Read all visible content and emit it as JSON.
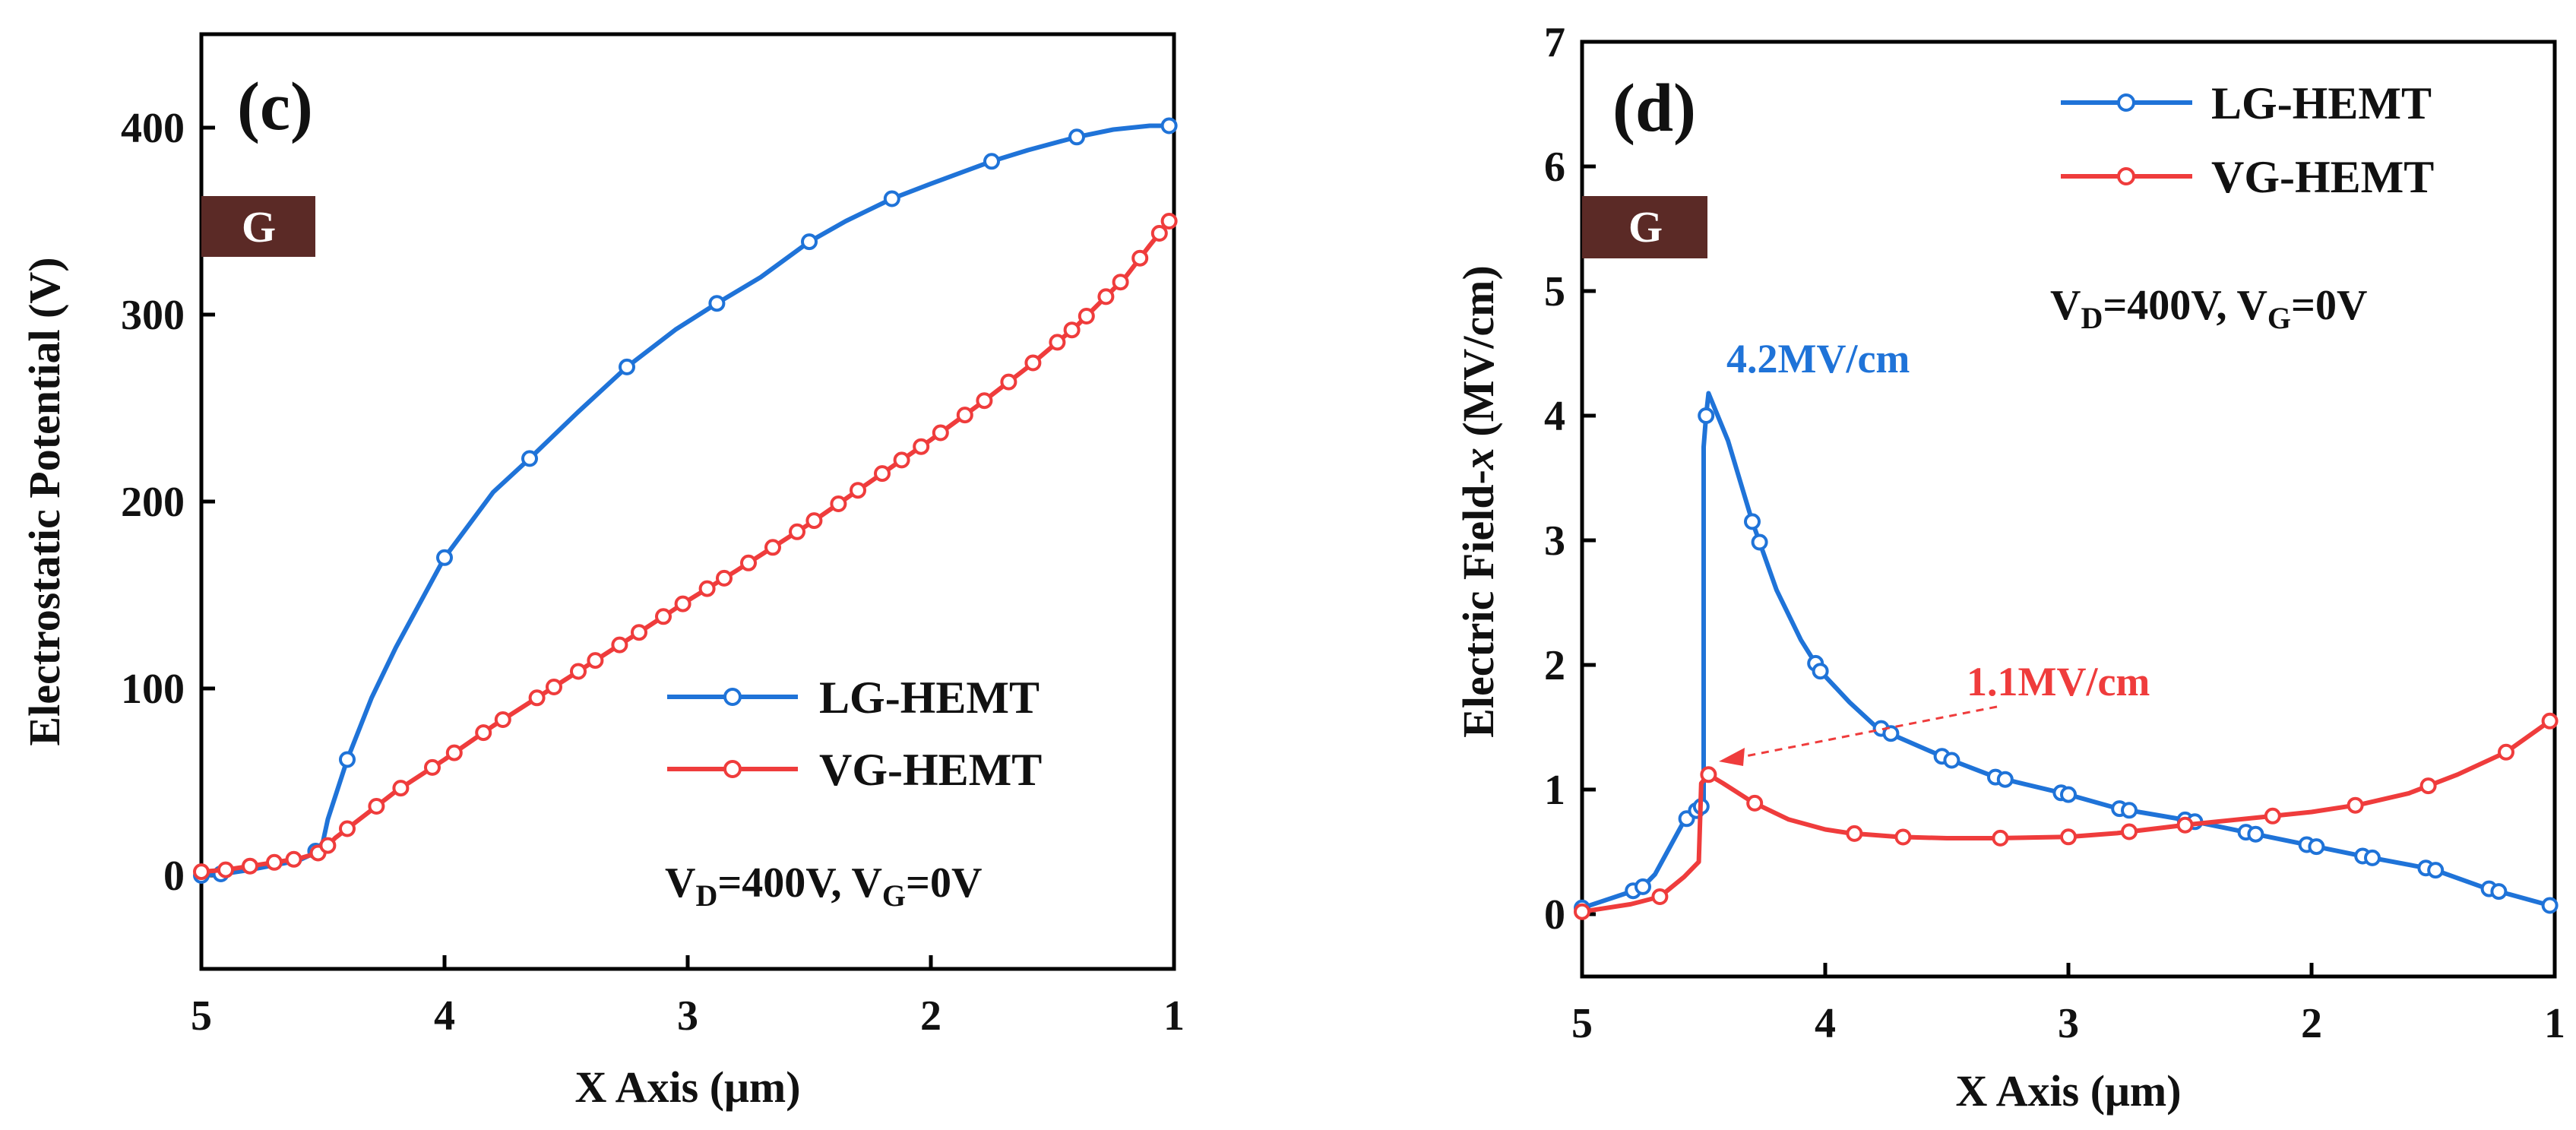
{
  "colors": {
    "lg": "#1f73d8",
    "vg": "#ef3c3c",
    "gate_box": "#5b2a26",
    "axis": "#000000"
  },
  "chart_data": [
    {
      "type": "line",
      "panel_label": "(c)",
      "xlabel": "X Axis (μm)",
      "ylabel": "Electrostatic Potential (V)",
      "xlim": [
        5,
        1
      ],
      "ylim": [
        -50,
        450
      ],
      "x_ticks": [
        5,
        4,
        3,
        2,
        1
      ],
      "y_ticks": [
        0,
        100,
        200,
        300,
        400
      ],
      "gate_label": "G",
      "condition": {
        "v_d": "V",
        "d_sub": "D",
        "mid": "=400V, V",
        "g_sub": "G",
        "end": "=0V"
      },
      "series": [
        {
          "name": "LG-HEMT",
          "x": [
            5.0,
            4.9,
            4.8,
            4.6,
            4.55,
            4.52,
            4.5,
            4.48,
            4.4,
            4.3,
            4.2,
            4.0,
            3.8,
            3.65,
            3.45,
            3.25,
            3.05,
            2.88,
            2.7,
            2.5,
            2.35,
            2.16,
            2.0,
            1.75,
            1.6,
            1.4,
            1.25,
            1.1,
            1.02
          ],
          "y": [
            0,
            1,
            3,
            8,
            11,
            14,
            18,
            30,
            62,
            95,
            122,
            170,
            205,
            223,
            248,
            272,
            292,
            306,
            320,
            339,
            350,
            362,
            370,
            382,
            388,
            395,
            399,
            401,
            401
          ],
          "markers_x": [
            5.0,
            4.92,
            4.53,
            4.4,
            4.0,
            3.65,
            3.25,
            2.88,
            2.5,
            2.16,
            1.75,
            1.4,
            1.02
          ]
        },
        {
          "name": "VG-HEMT",
          "x": [
            5.0,
            4.9,
            4.8,
            4.7,
            4.6,
            4.52,
            4.48,
            4.45,
            4.4,
            4.3,
            4.2,
            4.0,
            3.8,
            3.5,
            3.2,
            3.0,
            2.8,
            2.5,
            2.2,
            2.0,
            1.8,
            1.6,
            1.4,
            1.2,
            1.1,
            1.02
          ],
          "y": [
            2,
            3,
            5,
            7,
            9,
            12,
            16,
            20,
            25,
            35,
            45,
            62,
            80,
            105,
            130,
            147,
            163,
            188,
            215,
            233,
            252,
            272,
            294,
            320,
            337,
            350
          ],
          "markers_x": [
            5.0,
            4.9,
            4.8,
            4.7,
            4.62,
            4.52,
            4.48,
            4.4,
            4.28,
            4.18,
            4.05,
            3.96,
            3.84,
            3.76,
            3.62,
            3.55,
            3.45,
            3.38,
            3.28,
            3.2,
            3.1,
            3.02,
            2.92,
            2.85,
            2.75,
            2.65,
            2.55,
            2.48,
            2.38,
            2.3,
            2.2,
            2.12,
            2.04,
            1.96,
            1.86,
            1.78,
            1.68,
            1.58,
            1.48,
            1.42,
            1.36,
            1.28,
            1.22,
            1.14,
            1.06,
            1.02
          ]
        }
      ]
    },
    {
      "type": "line",
      "panel_label": "(d)",
      "xlabel": "X Axis (μm)",
      "ylabel_main": "Electric Field-",
      "ylabel_italic": "x",
      "ylabel_unit": " (MV/cm)",
      "xlim": [
        5,
        1
      ],
      "ylim": [
        -0.5,
        7
      ],
      "x_ticks": [
        5,
        4,
        3,
        2,
        1
      ],
      "y_ticks": [
        0,
        1,
        2,
        3,
        4,
        5,
        6,
        7
      ],
      "gate_label": "G",
      "condition": {
        "v_d": "V",
        "d_sub": "D",
        "mid": "=400V, V",
        "g_sub": "G",
        "end": "=0V"
      },
      "annotations": {
        "lg_peak": "4.2MV/cm",
        "vg_peak": "1.1MV/cm"
      },
      "series": [
        {
          "name": "LG-HEMT",
          "x": [
            5.0,
            4.8,
            4.75,
            4.7,
            4.58,
            4.5,
            4.5,
            4.49,
            4.48,
            4.4,
            4.3,
            4.2,
            4.1,
            4.02,
            3.9,
            3.8,
            3.7,
            3.5,
            3.3,
            3.0,
            2.8,
            2.5,
            2.25,
            2.0,
            1.8,
            1.5,
            1.3,
            1.02
          ],
          "y": [
            0.05,
            0.18,
            0.22,
            0.32,
            0.75,
            0.88,
            3.75,
            4.0,
            4.18,
            3.8,
            3.15,
            2.6,
            2.2,
            1.95,
            1.7,
            1.52,
            1.42,
            1.25,
            1.1,
            0.96,
            0.85,
            0.75,
            0.65,
            0.55,
            0.47,
            0.36,
            0.22,
            0.07
          ],
          "markers_x": [
            5.0,
            4.79,
            4.75,
            4.57,
            4.53,
            4.51,
            4.49,
            4.3,
            4.27,
            4.04,
            4.02,
            3.77,
            3.73,
            3.52,
            3.48,
            3.3,
            3.26,
            3.03,
            3.0,
            2.79,
            2.75,
            2.52,
            2.48,
            2.27,
            2.23,
            2.02,
            1.98,
            1.79,
            1.75,
            1.53,
            1.49,
            1.27,
            1.23,
            1.02
          ]
        },
        {
          "name": "VG-HEMT",
          "x": [
            5.0,
            4.9,
            4.8,
            4.68,
            4.58,
            4.52,
            4.51,
            4.48,
            4.42,
            4.3,
            4.15,
            4.0,
            3.9,
            3.7,
            3.5,
            3.3,
            3.0,
            2.8,
            2.5,
            2.2,
            2.0,
            1.8,
            1.6,
            1.4,
            1.2,
            1.02
          ],
          "y": [
            0.02,
            0.05,
            0.08,
            0.14,
            0.3,
            0.42,
            1.05,
            1.12,
            1.05,
            0.9,
            0.76,
            0.68,
            0.65,
            0.62,
            0.61,
            0.61,
            0.62,
            0.65,
            0.72,
            0.78,
            0.82,
            0.88,
            0.97,
            1.12,
            1.3,
            1.55
          ],
          "markers_x": [
            5.0,
            4.68,
            4.48,
            4.29,
            3.88,
            3.68,
            3.28,
            3.0,
            2.75,
            2.52,
            2.16,
            1.82,
            1.52,
            1.2,
            1.02
          ]
        }
      ]
    }
  ]
}
